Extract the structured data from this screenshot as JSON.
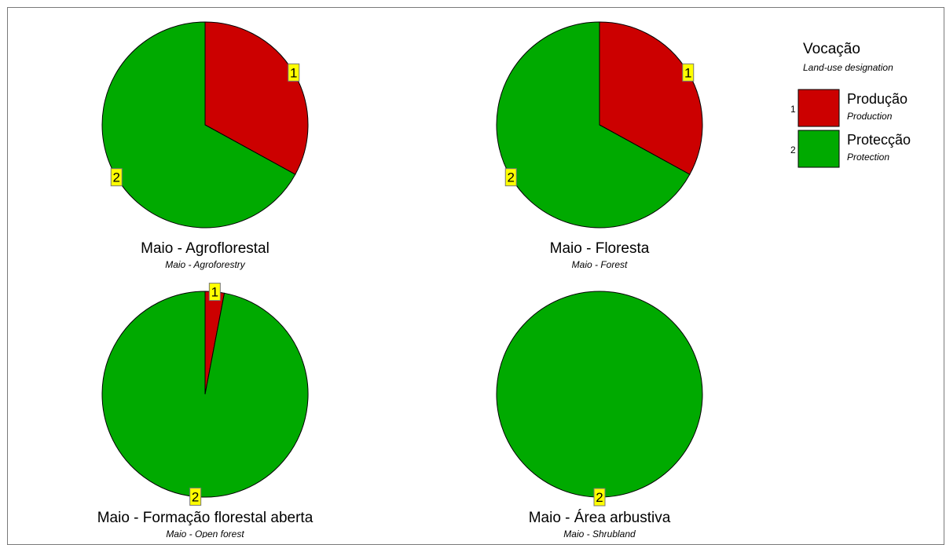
{
  "chart_data": [
    {
      "type": "pie",
      "title": "Maio - Agroflorestal",
      "subtitle": "Maio - Agroforestry",
      "categories": [
        "1",
        "2"
      ],
      "values": [
        33,
        67
      ]
    },
    {
      "type": "pie",
      "title": "Maio - Floresta",
      "subtitle": "Maio - Forest",
      "categories": [
        "1",
        "2"
      ],
      "values": [
        33,
        67
      ]
    },
    {
      "type": "pie",
      "title": "Maio - Formação florestal aberta",
      "subtitle": "Maio - Open forest",
      "categories": [
        "1",
        "2"
      ],
      "values": [
        3,
        97
      ]
    },
    {
      "type": "pie",
      "title": "Maio - Área arbustiva",
      "subtitle": "Maio - Shrubland",
      "categories": [
        "2"
      ],
      "values": [
        100
      ]
    }
  ],
  "legend": {
    "title": "Vocação",
    "subtitle": "Land-use designation",
    "placement": "top-right",
    "items": [
      {
        "code": "1",
        "label": "Produção",
        "sublabel": "Production",
        "color": "#cc0000"
      },
      {
        "code": "2",
        "label": "Protecção",
        "sublabel": "Protection",
        "color": "#00aa00"
      }
    ]
  },
  "colors": {
    "1": "#cc0000",
    "2": "#00aa00",
    "label_bg": "#ffff00",
    "outline": "#000000"
  }
}
